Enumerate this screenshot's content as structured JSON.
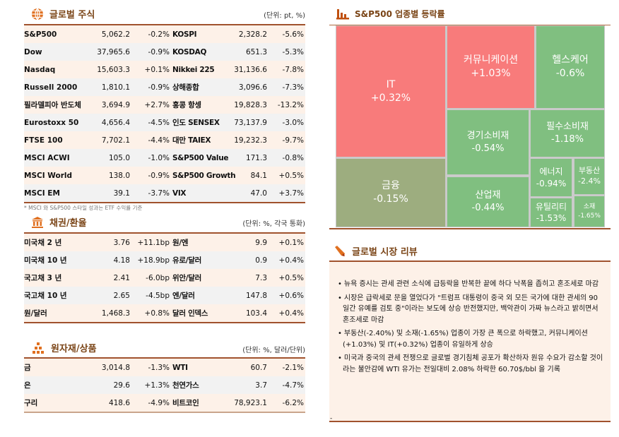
{
  "equities": {
    "title": "글로벌 주식",
    "unit": "(단위: pt, %)",
    "icon": "globe-icon",
    "rows": [
      [
        "S&P500",
        "5,062.2",
        "-0.2%",
        "KOSPI",
        "2,328.2",
        "-5.6%"
      ],
      [
        "Dow",
        "37,965.6",
        "-0.9%",
        "KOSDAQ",
        "651.3",
        "-5.3%"
      ],
      [
        "Nasdaq",
        "15,603.3",
        "+0.1%",
        "Nikkei 225",
        "31,136.6",
        "-7.8%"
      ],
      [
        "Russell 2000",
        "1,810.1",
        "-0.9%",
        "상해종합",
        "3,096.6",
        "-7.3%"
      ],
      [
        "필라델피아 반도체",
        "3,694.9",
        "+2.7%",
        "홍콩 항셍",
        "19,828.3",
        "-13.2%"
      ],
      [
        "Eurostoxx 50",
        "4,656.4",
        "-4.5%",
        "인도 SENSEX",
        "73,137.9",
        "-3.0%"
      ],
      [
        "FTSE 100",
        "7,702.1",
        "-4.4%",
        "대만 TAIEX",
        "19,232.3",
        "-9.7%"
      ],
      [
        "MSCI ACWI",
        "105.0",
        "-1.0%",
        "S&P500 Value",
        "171.3",
        "-0.8%"
      ],
      [
        "MSCI World",
        "138.0",
        "-0.9%",
        "S&P500 Growth",
        "84.1",
        "+0.5%"
      ],
      [
        "MSCI EM",
        "39.1",
        "-3.7%",
        "VIX",
        "47.0",
        "+3.7%"
      ]
    ],
    "note": "* MSCI 와 S&P500 스타일 성과는 ETF 수익률 기준"
  },
  "bonds": {
    "title": "채권/환율",
    "unit": "(단위: %, 각국 통화)",
    "icon": "bank-icon",
    "rows": [
      [
        "미국채 2 년",
        "3.76",
        "+11.1bp",
        "원/엔",
        "9.9",
        "+0.1%"
      ],
      [
        "미국채 10 년",
        "4.18",
        "+18.9bp",
        "유로/달러",
        "0.9",
        "+0.4%"
      ],
      [
        "국고채 3 년",
        "2.41",
        "-6.0bp",
        "위안/달러",
        "7.3",
        "+0.5%"
      ],
      [
        "국고채 10 년",
        "2.65",
        "-4.5bp",
        "엔/달러",
        "147.8",
        "+0.6%"
      ],
      [
        "원/달러",
        "1,468.3",
        "+0.8%",
        "달러 인덱스",
        "103.4",
        "+0.4%"
      ]
    ]
  },
  "commodities": {
    "title": "원자재/상품",
    "unit": "(단위: %, 달러/단위)",
    "icon": "gold-bars-icon",
    "rows": [
      [
        "금",
        "3,014.8",
        "-1.3%",
        "WTI",
        "60.7",
        "-2.1%"
      ],
      [
        "은",
        "29.6",
        "+1.3%",
        "천연가스",
        "3.7",
        "-4.7%"
      ],
      [
        "구리",
        "418.6",
        "-4.9%",
        "비트코인",
        "78,923.1",
        "-6.2%"
      ]
    ]
  },
  "sectors": {
    "title": "S&P500 업종별 등락률",
    "icon": "bar-chart-icon",
    "colors": {
      "up": "#f87b7b",
      "down": "#80bf80",
      "flat": "#9dad7f"
    },
    "items": [
      {
        "name": "IT",
        "value": "+0.32%",
        "tone": "up"
      },
      {
        "name": "금융",
        "value": "-0.15%",
        "tone": "flat"
      },
      {
        "name": "커뮤니케이션",
        "value": "+1.03%",
        "tone": "up"
      },
      {
        "name": "헬스케어",
        "value": "-0.6%",
        "tone": "down"
      },
      {
        "name": "경기소비재",
        "value": "-0.54%",
        "tone": "down"
      },
      {
        "name": "산업재",
        "value": "-0.44%",
        "tone": "down"
      },
      {
        "name": "필수소비재",
        "value": "-1.18%",
        "tone": "down"
      },
      {
        "name": "에너지",
        "value": "-0.94%",
        "tone": "down"
      },
      {
        "name": "부동산",
        "value": "-2.4%",
        "tone": "down"
      },
      {
        "name": "유틸리티",
        "value": "-1.53%",
        "tone": "down"
      },
      {
        "name": "소재",
        "value": "-1.65%",
        "tone": "down"
      }
    ]
  },
  "review": {
    "title": "글로벌 시장 리뷰",
    "icon": "pencil-icon",
    "bullets": [
      "뉴욕 증시는 관세 관련 소식에 급등락을 반복한 끝에 하다 낙폭을 좁히고 혼조세로 마감",
      "시장은 급락세로 문을 열었다가 \"트럼프 대통령이 중국 외 모든 국가에 대한 관세의 90 일간 유예를 검토 중\"이라는 보도에 상승 반전했지만, 백악관이 가짜 뉴스라고 밝히면서 혼조세로 마감",
      "부동산(-2.40%) 및 소재(-1.65%) 업종이 가장 큰 폭으로 하락했고, 커뮤니케이션(+1.03%) 및 IT(+0.32%) 업종이 유일하게 상승",
      "미국과 중국의 관세 전쟁으로 글로벌 경기침체 공포가 확산하자 원유 수요가 감소할 것이라는 불안감에 WTI 유가는 전일대비 2.08% 하락한 60.70$/bbl 을 기록"
    ],
    "footer": "-"
  }
}
